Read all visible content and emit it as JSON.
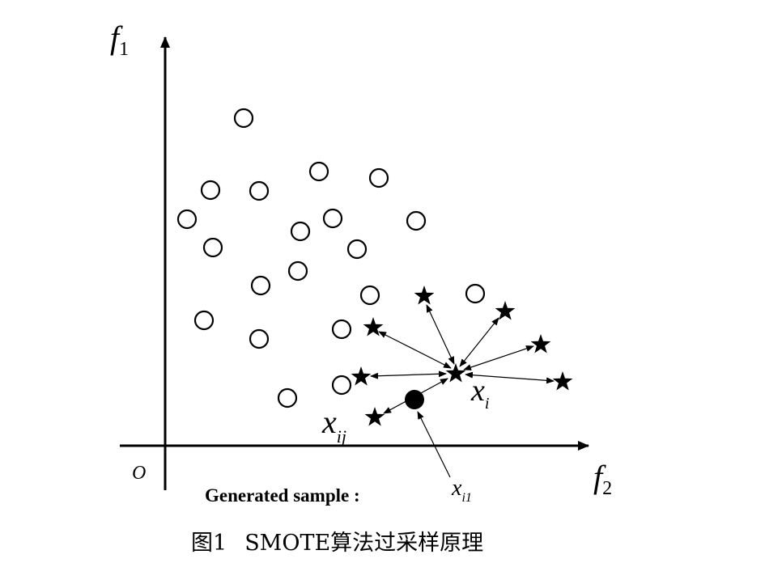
{
  "axes": {
    "y_label": {
      "main": "f",
      "sub": "1"
    },
    "x_label": {
      "main": "f",
      "sub": "2"
    },
    "origin": "O"
  },
  "labels": {
    "x_i": {
      "main": "x",
      "sub": "i"
    },
    "x_ij": {
      "main": "x",
      "sub": "ij"
    },
    "generated": "Generated sample :",
    "x_i1": {
      "main": "x",
      "sub": "i1"
    }
  },
  "caption": {
    "number": "图1",
    "text": "SMOTE算法过采样原理"
  }
}
